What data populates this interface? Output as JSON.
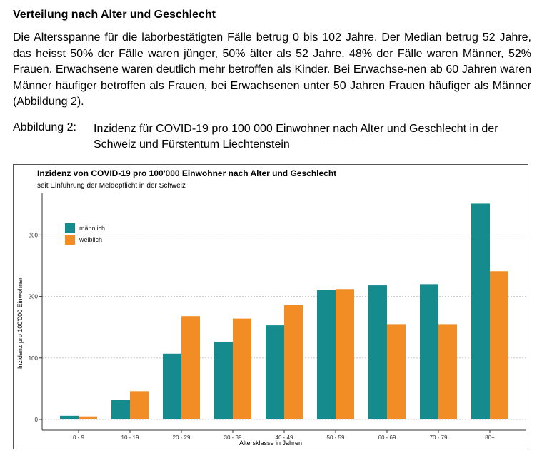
{
  "document": {
    "heading": "Verteilung nach Alter und Geschlecht",
    "paragraph": "Die Altersspanne für die laborbestätigten Fälle betrug 0 bis 102 Jahre. Der Median betrug 52 Jahre, das heisst 50% der Fälle waren jünger, 50% älter als 52 Jahre. 48% der Fälle waren Männer, 52% Frauen. Erwachsene waren deutlich mehr betroffen als Kinder. Bei Erwachse-nen ab 60 Jahren waren Männer häufiger betroffen als Frauen, bei Erwachsenen unter 50 Jahren Frauen häufiger als Männer (Abbildung 2).",
    "figure_label": "Abbildung 2:",
    "figure_caption": "Inzidenz für COVID-19 pro 100 000 Einwohner nach Alter und Geschlecht in der Schweiz und Fürstentum Liechtenstein"
  },
  "chart_data": {
    "type": "bar",
    "title": "Inzidenz von COVID-19 pro 100'000 Einwohner nach Alter und Geschlecht",
    "subtitle": "seit Einführung der Meldepflicht in der Schweiz",
    "xlabel": "Altersklasse in Jahren",
    "ylabel": "Inzidenz pro 100'000 Einwohner",
    "categories": [
      "0 - 9",
      "10 - 19",
      "20 - 29",
      "30 - 39",
      "40 - 49",
      "50 - 59",
      "60 - 69",
      "70 - 79",
      "80+"
    ],
    "series": [
      {
        "name": "männlich",
        "color": "#168b8d",
        "values": [
          6,
          32,
          107,
          126,
          153,
          210,
          218,
          220,
          351
        ]
      },
      {
        "name": "weiblich",
        "color": "#f28c24",
        "values": [
          5,
          46,
          168,
          164,
          186,
          212,
          155,
          155,
          241
        ]
      }
    ],
    "yticks": [
      0,
      100,
      200,
      300
    ],
    "ylim": [
      0,
      370
    ],
    "grid": "horizontal dotted",
    "legend_position": "top-left"
  }
}
